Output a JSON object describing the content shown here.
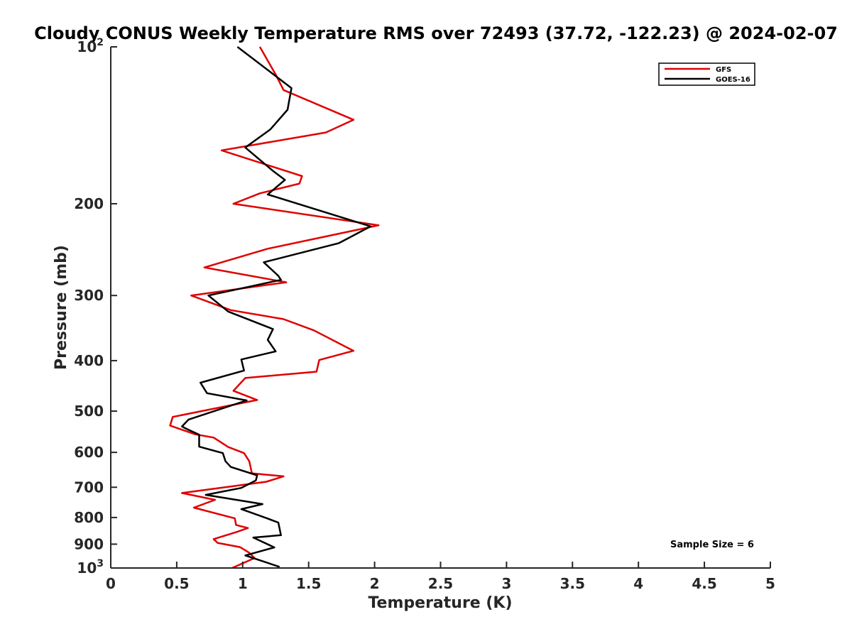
{
  "chart_data": {
    "type": "line",
    "title": "Cloudy CONUS Weekly Temperature RMS over 72493 (37.72, -122.23) @ 2024-02-07",
    "xlabel": "Temperature (K)",
    "ylabel": "Pressure (mb)",
    "xlim": [
      0,
      5
    ],
    "ylim": [
      100,
      1000
    ],
    "y_scale": "log",
    "y_reversed": true,
    "grid": false,
    "legend_position": "top-right",
    "x_ticks": [
      "0",
      "0.5",
      "1",
      "1.5",
      "2",
      "2.5",
      "3",
      "3.5",
      "4",
      "4.5",
      "5"
    ],
    "x_tick_values": [
      0,
      0.5,
      1,
      1.5,
      2,
      2.5,
      3,
      3.5,
      4,
      4.5,
      5
    ],
    "y_ticks": [
      {
        "value": 100,
        "base": "10",
        "exp": "2"
      },
      {
        "value": 200,
        "base": "200",
        "exp": ""
      },
      {
        "value": 300,
        "base": "300",
        "exp": ""
      },
      {
        "value": 400,
        "base": "400",
        "exp": ""
      },
      {
        "value": 500,
        "base": "500",
        "exp": ""
      },
      {
        "value": 600,
        "base": "600",
        "exp": ""
      },
      {
        "value": 700,
        "base": "700",
        "exp": ""
      },
      {
        "value": 800,
        "base": "800",
        "exp": ""
      },
      {
        "value": 900,
        "base": "900",
        "exp": ""
      },
      {
        "value": 1000,
        "base": "10",
        "exp": "3"
      }
    ],
    "annotation": "Sample Size = 6",
    "series": [
      {
        "name": "GFS",
        "color": "#e00000",
        "points": [
          [
            1.13,
            100
          ],
          [
            1.25,
            113
          ],
          [
            1.31,
            121
          ],
          [
            1.84,
            138
          ],
          [
            1.63,
            146
          ],
          [
            0.84,
            158
          ],
          [
            1.45,
            177
          ],
          [
            1.43,
            183
          ],
          [
            1.13,
            191
          ],
          [
            0.93,
            200
          ],
          [
            2.03,
            220
          ],
          [
            1.19,
            244
          ],
          [
            0.71,
            265
          ],
          [
            1.33,
            283
          ],
          [
            0.61,
            300
          ],
          [
            0.91,
            320
          ],
          [
            1.31,
            333
          ],
          [
            1.54,
            350
          ],
          [
            1.84,
            383
          ],
          [
            1.58,
            399
          ],
          [
            1.56,
            420
          ],
          [
            1.02,
            432
          ],
          [
            0.93,
            457
          ],
          [
            1.11,
            476
          ],
          [
            0.69,
            500
          ],
          [
            0.47,
            513
          ],
          [
            0.45,
            533
          ],
          [
            0.64,
            554
          ],
          [
            0.78,
            562
          ],
          [
            0.89,
            586
          ],
          [
            1.01,
            602
          ],
          [
            1.05,
            624
          ],
          [
            1.07,
            658
          ],
          [
            1.31,
            667
          ],
          [
            1.18,
            683
          ],
          [
            0.54,
            718
          ],
          [
            0.79,
            740
          ],
          [
            0.63,
            766
          ],
          [
            0.94,
            803
          ],
          [
            0.95,
            827
          ],
          [
            1.04,
            838
          ],
          [
            0.96,
            852
          ],
          [
            0.78,
            880
          ],
          [
            0.81,
            895
          ],
          [
            0.98,
            912
          ],
          [
            1.05,
            935
          ],
          [
            1.09,
            957
          ],
          [
            0.92,
            1000
          ]
        ]
      },
      {
        "name": "GOES-16",
        "color": "#000000",
        "points": [
          [
            0.96,
            100
          ],
          [
            1.37,
            120
          ],
          [
            1.34,
            132
          ],
          [
            1.21,
            144
          ],
          [
            1.02,
            156
          ],
          [
            1.23,
            173
          ],
          [
            1.32,
            180
          ],
          [
            1.19,
            192
          ],
          [
            1.97,
            221
          ],
          [
            1.73,
            238
          ],
          [
            1.16,
            259
          ],
          [
            1.27,
            275
          ],
          [
            1.29,
            280
          ],
          [
            0.74,
            300
          ],
          [
            0.89,
            322
          ],
          [
            1.23,
            348
          ],
          [
            1.19,
            365
          ],
          [
            1.25,
            384
          ],
          [
            0.99,
            398
          ],
          [
            1.01,
            418
          ],
          [
            0.68,
            441
          ],
          [
            0.73,
            462
          ],
          [
            1.03,
            477
          ],
          [
            0.59,
            519
          ],
          [
            0.54,
            535
          ],
          [
            0.57,
            540
          ],
          [
            0.67,
            555
          ],
          [
            0.67,
            585
          ],
          [
            0.85,
            602
          ],
          [
            0.87,
            624
          ],
          [
            0.91,
            640
          ],
          [
            1.11,
            664
          ],
          [
            1.1,
            679
          ],
          [
            0.99,
            702
          ],
          [
            0.72,
            724
          ],
          [
            1.15,
            754
          ],
          [
            0.99,
            771
          ],
          [
            1.18,
            802
          ],
          [
            1.27,
            818
          ],
          [
            1.29,
            865
          ],
          [
            1.08,
            874
          ],
          [
            1.24,
            913
          ],
          [
            1.02,
            946
          ],
          [
            1.28,
            995
          ]
        ]
      }
    ]
  }
}
